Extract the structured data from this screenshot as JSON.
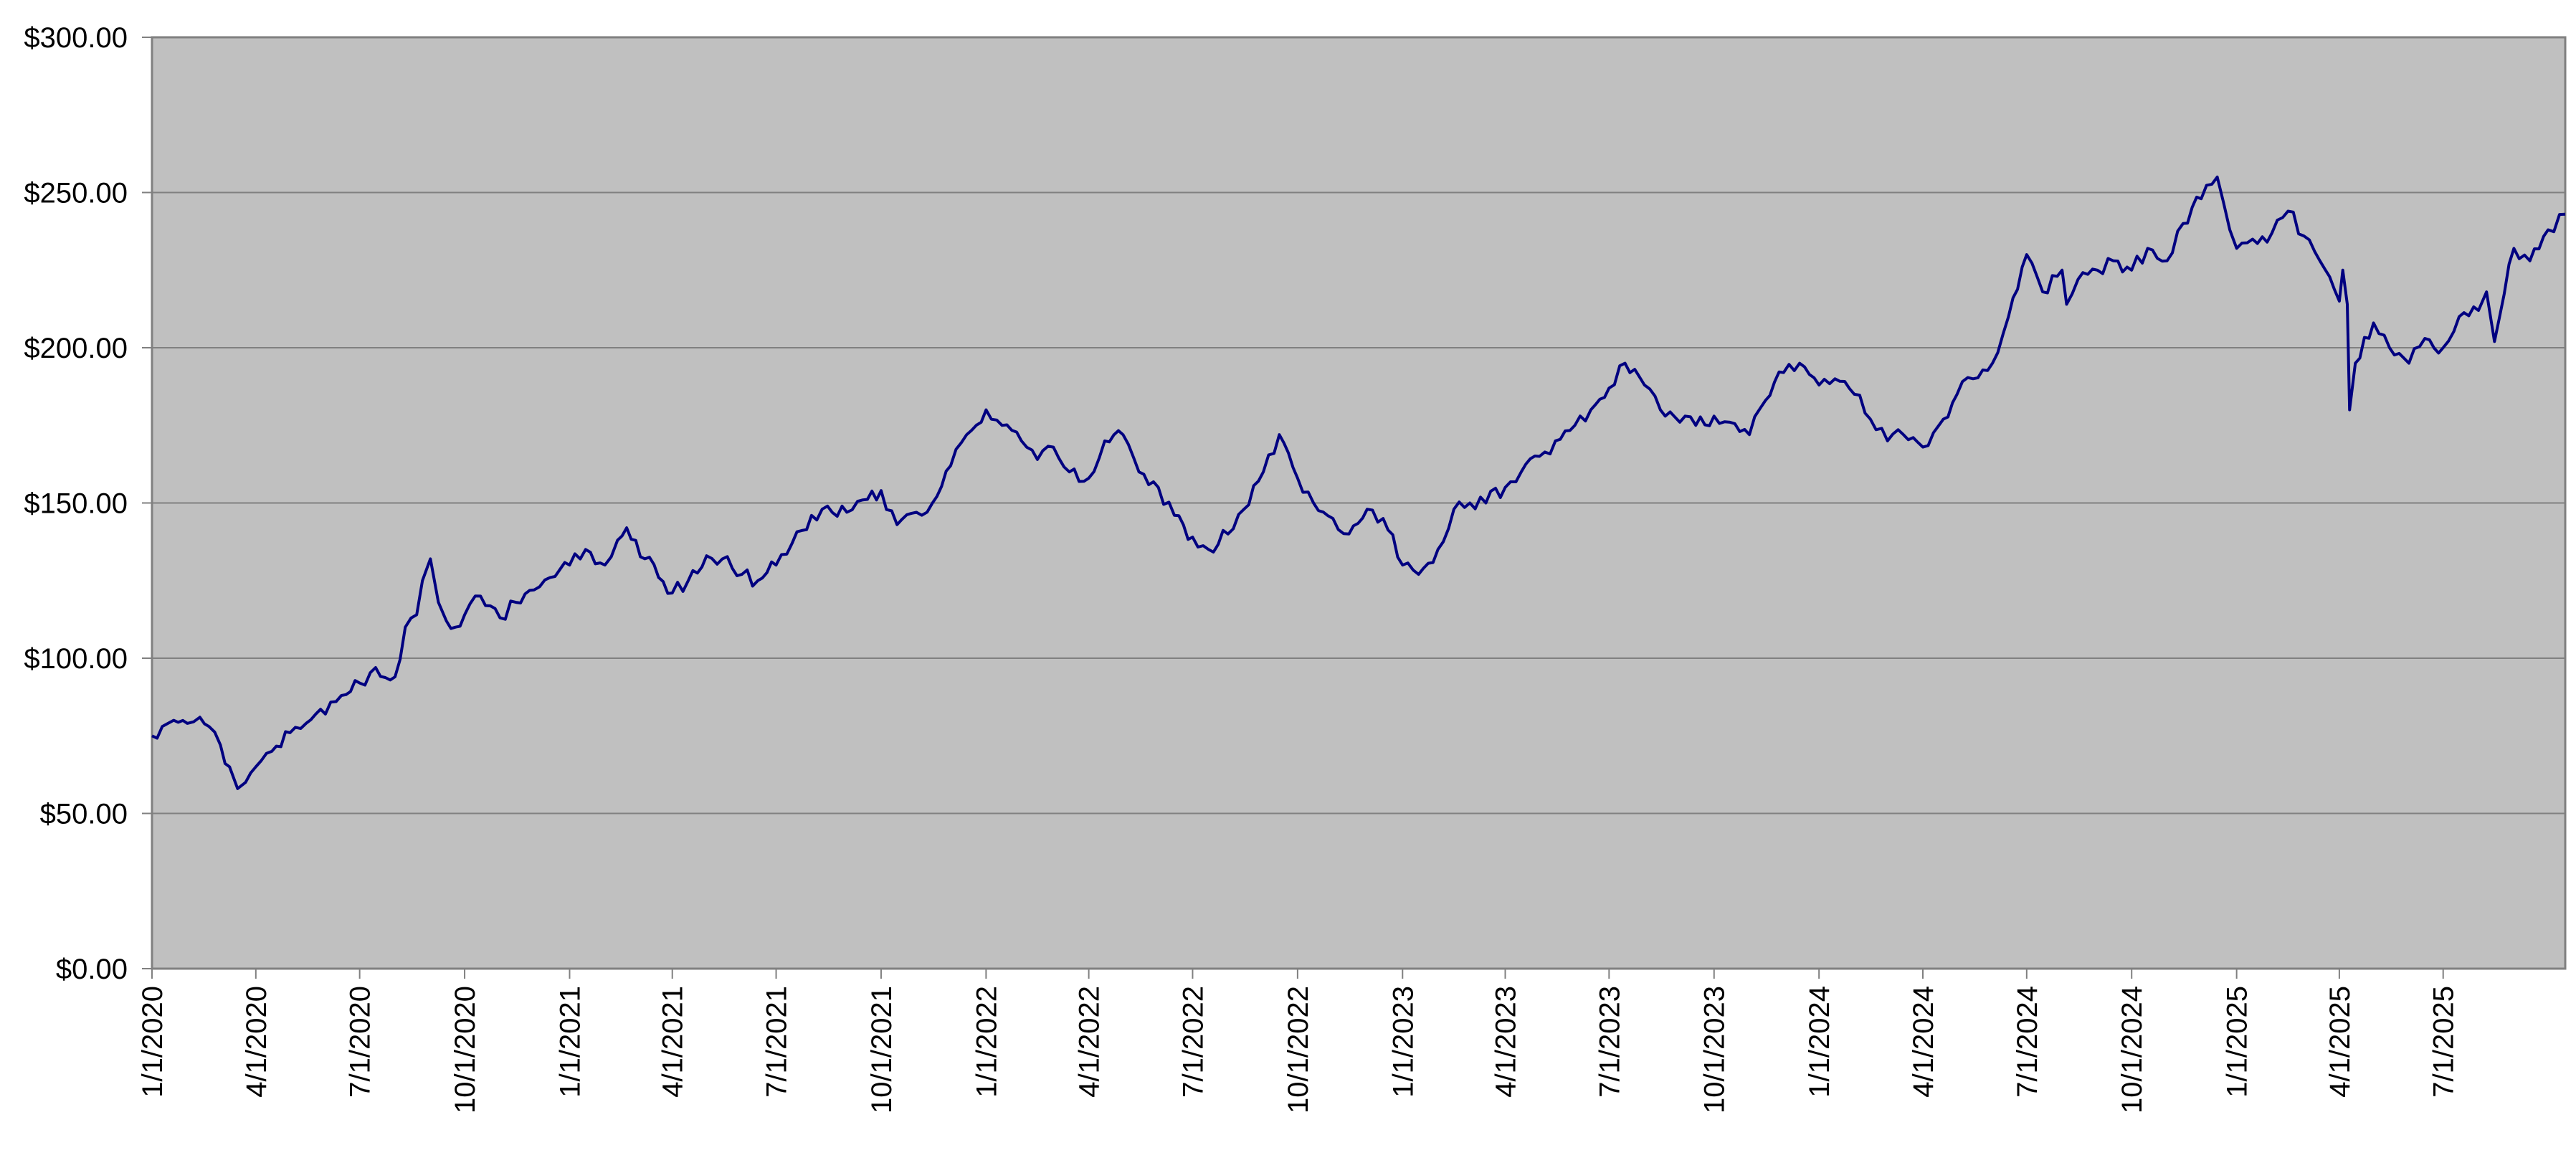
{
  "colors": {
    "plot_background": "#C0C0C0",
    "gridline": "#808080",
    "axis": "#808080",
    "series_line": "#000080",
    "text": "#000000"
  },
  "chart_data": {
    "type": "line",
    "title": "",
    "xlabel": "",
    "ylabel": "",
    "grid": true,
    "legend": "none",
    "x_axis": {
      "range": [
        "2020-01-01",
        "2025-10-16"
      ],
      "tick_values": [
        "2020-01-01",
        "2020-04-01",
        "2020-07-01",
        "2020-10-01",
        "2021-01-01",
        "2021-04-01",
        "2021-07-01",
        "2021-10-01",
        "2022-01-01",
        "2022-04-01",
        "2022-07-01",
        "2022-10-01",
        "2023-01-01",
        "2023-04-01",
        "2023-07-01",
        "2023-10-01",
        "2024-01-01",
        "2024-04-01",
        "2024-07-01",
        "2024-10-01",
        "2025-01-01",
        "2025-04-01",
        "2025-07-01"
      ],
      "tick_labels": [
        "1/1/2020",
        "4/1/2020",
        "7/1/2020",
        "10/1/2020",
        "1/1/2021",
        "4/1/2021",
        "7/1/2021",
        "10/1/2021",
        "1/1/2022",
        "4/1/2022",
        "7/1/2022",
        "10/1/2022",
        "1/1/2023",
        "4/1/2023",
        "7/1/2023",
        "10/1/2023",
        "1/1/2024",
        "4/1/2024",
        "7/1/2024",
        "10/1/2024",
        "1/1/2025",
        "4/1/2025",
        "7/1/2025"
      ]
    },
    "y_axis": {
      "range": [
        0,
        300
      ],
      "tick_values": [
        0,
        50,
        100,
        150,
        200,
        250,
        300
      ],
      "tick_labels": [
        "$0.00",
        "$50.00",
        "$100.00",
        "$150.00",
        "$200.00",
        "$250.00",
        "$300.00"
      ]
    },
    "series": [
      {
        "x": [
          "2020-01-01",
          "2020-01-10",
          "2020-01-20",
          "2020-02-01",
          "2020-02-12",
          "2020-02-20",
          "2020-03-01",
          "2020-03-09",
          "2020-03-16",
          "2020-03-23",
          "2020-04-01",
          "2020-04-15",
          "2020-05-01",
          "2020-05-15",
          "2020-06-01",
          "2020-06-15",
          "2020-07-01",
          "2020-07-15",
          "2020-08-01",
          "2020-08-10",
          "2020-08-20",
          "2020-08-25",
          "2020-09-01",
          "2020-09-08",
          "2020-09-15",
          "2020-09-23",
          "2020-10-01",
          "2020-10-15",
          "2020-11-01",
          "2020-11-15",
          "2020-12-01",
          "2020-12-15",
          "2021-01-01",
          "2021-01-15",
          "2021-02-01",
          "2021-02-12",
          "2021-02-20",
          "2021-03-08",
          "2021-03-20",
          "2021-04-01",
          "2021-04-15",
          "2021-05-01",
          "2021-05-15",
          "2021-06-01",
          "2021-06-15",
          "2021-07-01",
          "2021-07-15",
          "2021-08-01",
          "2021-08-15",
          "2021-09-01",
          "2021-09-15",
          "2021-10-01",
          "2021-10-15",
          "2021-11-01",
          "2021-11-15",
          "2021-12-01",
          "2021-12-15",
          "2022-01-01",
          "2022-01-15",
          "2022-02-01",
          "2022-02-15",
          "2022-03-01",
          "2022-03-15",
          "2022-04-01",
          "2022-04-15",
          "2022-05-01",
          "2022-05-15",
          "2022-06-01",
          "2022-06-15",
          "2022-07-01",
          "2022-07-15",
          "2022-08-01",
          "2022-08-15",
          "2022-09-01",
          "2022-09-15",
          "2022-10-01",
          "2022-10-15",
          "2022-11-01",
          "2022-11-15",
          "2022-12-01",
          "2022-12-15",
          "2023-01-01",
          "2023-01-15",
          "2023-02-01",
          "2023-02-15",
          "2023-03-01",
          "2023-03-15",
          "2023-04-01",
          "2023-04-15",
          "2023-05-01",
          "2023-05-15",
          "2023-06-01",
          "2023-06-15",
          "2023-07-01",
          "2023-07-15",
          "2023-08-01",
          "2023-08-15",
          "2023-09-01",
          "2023-09-15",
          "2023-10-01",
          "2023-10-15",
          "2023-11-01",
          "2023-11-15",
          "2023-12-01",
          "2023-12-15",
          "2024-01-01",
          "2024-01-15",
          "2024-02-01",
          "2024-02-15",
          "2024-03-01",
          "2024-03-15",
          "2024-04-01",
          "2024-04-15",
          "2024-05-01",
          "2024-05-15",
          "2024-06-01",
          "2024-06-15",
          "2024-07-01",
          "2024-07-15",
          "2024-08-01",
          "2024-08-05",
          "2024-08-15",
          "2024-09-01",
          "2024-09-15",
          "2024-10-01",
          "2024-10-15",
          "2024-11-01",
          "2024-11-15",
          "2024-12-01",
          "2024-12-15",
          "2024-12-26",
          "2025-01-01",
          "2025-01-15",
          "2025-02-01",
          "2025-02-15",
          "2025-03-01",
          "2025-03-15",
          "2025-04-01",
          "2025-04-04",
          "2025-04-08",
          "2025-04-10",
          "2025-04-15",
          "2025-05-01",
          "2025-05-15",
          "2025-06-01",
          "2025-06-15",
          "2025-07-01",
          "2025-07-15",
          "2025-08-01",
          "2025-08-08",
          "2025-08-15",
          "2025-09-01",
          "2025-09-15",
          "2025-10-01",
          "2025-10-16"
        ],
        "y": [
          75,
          78,
          80,
          79,
          81,
          78,
          72,
          65,
          58,
          60,
          65,
          70,
          76,
          79,
          82,
          88,
          92,
          97,
          94,
          110,
          114,
          125,
          132,
          118,
          112,
          110,
          114,
          120,
          113,
          118,
          122,
          126,
          130,
          135,
          130,
          138,
          142,
          132,
          126,
          121,
          125,
          133,
          132,
          127,
          125,
          130,
          137,
          146,
          149,
          147,
          151,
          154,
          143,
          147,
          150,
          162,
          172,
          180,
          175,
          170,
          164,
          168,
          160,
          158,
          170,
          172,
          160,
          155,
          146,
          139,
          135,
          140,
          148,
          160,
          172,
          158,
          150,
          145,
          140,
          148,
          145,
          130,
          127,
          135,
          148,
          150,
          150,
          155,
          160,
          165,
          170,
          175,
          180,
          187,
          195,
          188,
          180,
          176,
          175,
          178,
          176,
          172,
          183,
          192,
          195,
          188,
          190,
          185,
          177,
          170,
          172,
          168,
          175,
          185,
          190,
          195,
          210,
          230,
          218,
          225,
          214,
          222,
          225,
          228,
          225,
          232,
          228,
          240,
          248,
          255,
          238,
          232,
          235,
          237,
          244,
          236,
          228,
          215,
          225,
          214,
          180,
          195,
          208,
          200,
          195,
          203,
          200,
          210,
          212,
          218,
          202,
          232,
          228,
          238,
          243
        ]
      }
    ]
  }
}
